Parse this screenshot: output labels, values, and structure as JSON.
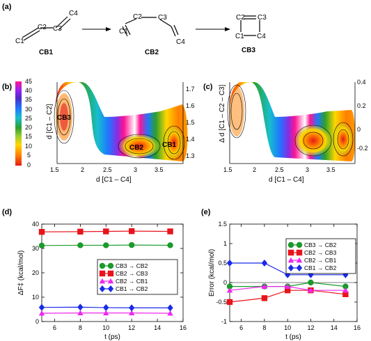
{
  "panel_a": {
    "label": "(a)",
    "molecules": [
      {
        "name": "CB1",
        "atoms": [
          "C4",
          "C2",
          "C3",
          "C1"
        ]
      },
      {
        "name": "CB2",
        "atoms": [
          "C2",
          "C3",
          "C1",
          "C4"
        ]
      },
      {
        "name": "CB3",
        "atoms": [
          "C2",
          "C3",
          "C1",
          "C4"
        ]
      }
    ]
  },
  "panel_b": {
    "label": "(b)",
    "colorbar_ticks": [
      "45",
      "40",
      "35",
      "30",
      "25",
      "20",
      "15",
      "10",
      "5",
      "0"
    ],
    "xticks": [
      "1.5",
      "2",
      "2.5",
      "3",
      "3.5"
    ],
    "yticks": [
      "1.7",
      "1.6",
      "1.5",
      "1.4",
      "1.3"
    ],
    "xlabel": "d [C1 – C4]",
    "ylabel": "d [C1 – C2]",
    "minima": [
      "CB3",
      "CB2",
      "CB1"
    ]
  },
  "panel_c": {
    "label": "(c)",
    "xticks": [
      "1.5",
      "2",
      "2.5",
      "3",
      "3.5"
    ],
    "yticks": [
      "0.4",
      "0.2",
      "0",
      "-0.2"
    ],
    "xlabel": "d [C1 – C4]",
    "ylabel": "Δ d [C1 – C2 – C3]"
  },
  "chart_data": [
    {
      "panel": "(d)",
      "type": "line",
      "xlabel": "t (ps)",
      "ylabel": "ΔF‡ (kcal/mol)",
      "xlim": [
        5,
        16
      ],
      "ylim": [
        0,
        40
      ],
      "xticks": [
        "6",
        "8",
        "10",
        "12",
        "14",
        "16"
      ],
      "yticks": [
        "0",
        "10",
        "20",
        "30",
        "40"
      ],
      "legend_position": "right",
      "x": [
        5,
        8,
        10,
        12,
        15
      ],
      "series": [
        {
          "name": "CB3 → CB2",
          "color": "#1a9a2a",
          "marker": "circle",
          "values": [
            31.2,
            31.3,
            31.3,
            31.4,
            31.3
          ]
        },
        {
          "name": "CB2 → CB3",
          "color": "#e8131b",
          "marker": "square",
          "values": [
            36.8,
            36.9,
            37.0,
            37.1,
            37.0
          ]
        },
        {
          "name": "CB2 → CB1",
          "color": "#ee28ee",
          "marker": "triangle",
          "values": [
            3.4,
            3.5,
            3.5,
            3.5,
            3.4
          ]
        },
        {
          "name": "CB1 → CB2",
          "color": "#1a2ae8",
          "marker": "diamond",
          "values": [
            5.8,
            5.9,
            5.7,
            5.6,
            5.6
          ]
        }
      ]
    },
    {
      "panel": "(e)",
      "type": "line",
      "xlabel": "t (ps)",
      "ylabel": "Error (kcal/mol)",
      "xlim": [
        5,
        16
      ],
      "ylim": [
        -1,
        1.5
      ],
      "xticks": [
        "6",
        "8",
        "10",
        "12",
        "14",
        "16"
      ],
      "yticks": [
        "-1",
        "-0.5",
        "0",
        "0.5",
        "1",
        "1.5"
      ],
      "legend_position": "top-right",
      "x": [
        5,
        8,
        10,
        12,
        15
      ],
      "series": [
        {
          "name": "CB3 → CB2",
          "color": "#1a9a2a",
          "marker": "circle",
          "values": [
            -0.1,
            -0.1,
            -0.1,
            0.0,
            -0.1
          ]
        },
        {
          "name": "CB2 → CB3",
          "color": "#e8131b",
          "marker": "square",
          "values": [
            -0.5,
            -0.4,
            -0.2,
            -0.2,
            -0.3
          ]
        },
        {
          "name": "CB2 → CB1",
          "color": "#ee28ee",
          "marker": "triangle",
          "values": [
            -0.2,
            -0.1,
            -0.1,
            -0.2,
            -0.2
          ]
        },
        {
          "name": "CB1 → CB2",
          "color": "#1a2ae8",
          "marker": "diamond",
          "values": [
            0.5,
            0.5,
            0.2,
            0.2,
            0.2
          ]
        }
      ]
    }
  ]
}
